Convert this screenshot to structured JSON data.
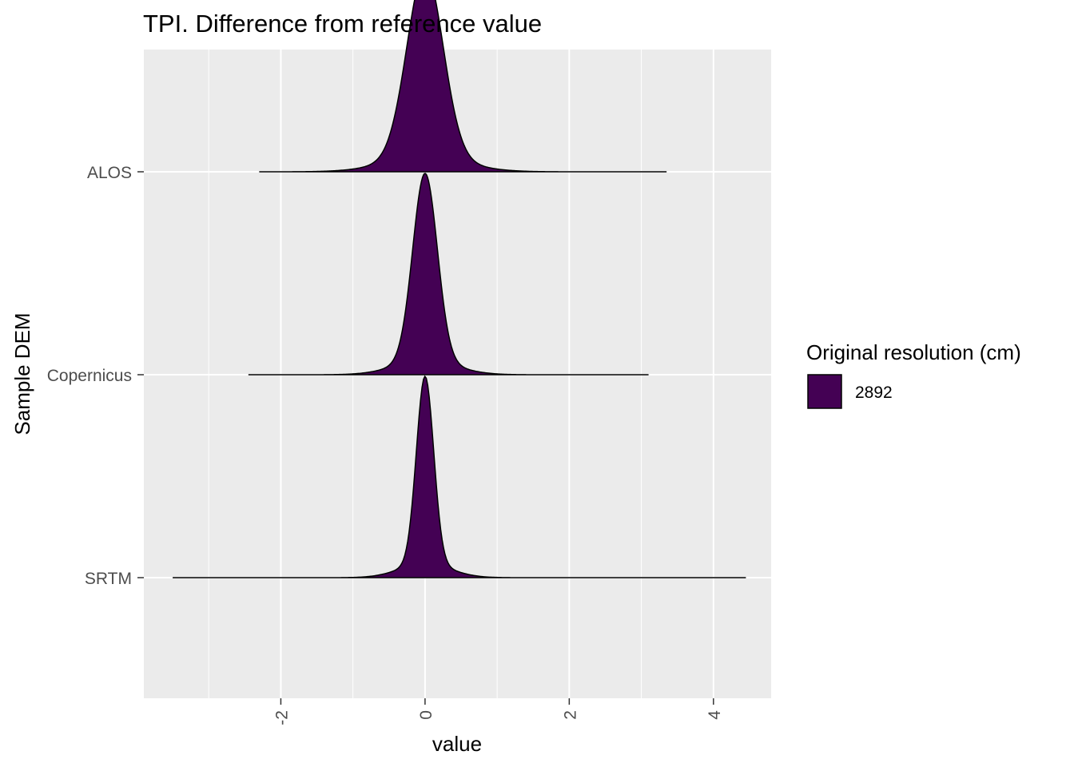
{
  "chart_data": {
    "type": "ridgeline density",
    "title": "TPI. Difference from reference value",
    "xlabel": "value",
    "ylabel": "Sample DEM",
    "xlim": [
      -3.9,
      4.8
    ],
    "x_ticks": [
      "-2",
      "0",
      "2",
      "4"
    ],
    "x_tick_values": [
      -2,
      0,
      2,
      4
    ],
    "categories": [
      "ALOS",
      "Copernicus",
      "SRTM"
    ],
    "grid": true,
    "legend": {
      "title": "Original resolution (cm)",
      "position": "right",
      "entries": [
        {
          "label": "2892",
          "color": "#440154"
        }
      ]
    },
    "fill_color": "#440154",
    "series": [
      {
        "category": "ALOS",
        "min": -2.3,
        "max": 3.35,
        "peak": 0.0,
        "sd": 0.25,
        "tail_sd": 0.55
      },
      {
        "category": "Copernicus",
        "min": -2.45,
        "max": 3.1,
        "peak": 0.0,
        "sd": 0.17,
        "tail_sd": 0.42
      },
      {
        "category": "SRTM",
        "min": -3.5,
        "max": 4.45,
        "peak": 0.0,
        "sd": 0.12,
        "tail_sd": 0.35
      }
    ]
  }
}
